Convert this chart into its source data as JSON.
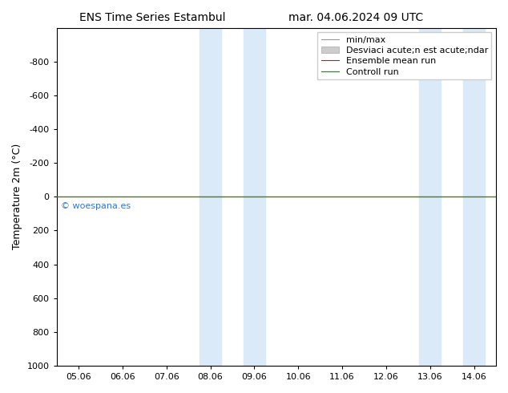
{
  "title_left": "ENS Time Series Estambul",
  "title_right": "mar. 04.06.2024 09 UTC",
  "ylabel": "Temperature 2m (°C)",
  "xlim": [
    -0.5,
    9.5
  ],
  "ylim": [
    1000,
    -1000
  ],
  "yticks": [
    -800,
    -600,
    -400,
    -200,
    0,
    200,
    400,
    600,
    800,
    1000
  ],
  "xtick_labels": [
    "05.06",
    "06.06",
    "07.06",
    "08.06",
    "09.06",
    "10.06",
    "11.06",
    "12.06",
    "13.06",
    "14.06"
  ],
  "xtick_positions": [
    0,
    1,
    2,
    3,
    4,
    5,
    6,
    7,
    8,
    9
  ],
  "shade_regions": [
    [
      2.75,
      3.25
    ],
    [
      3.75,
      4.25
    ],
    [
      7.75,
      8.25
    ],
    [
      8.75,
      9.25
    ]
  ],
  "shade_color": "#daeaf8",
  "horizontal_line_y": 0,
  "control_run_color": "#00aa00",
  "ensemble_mean_color": "#ff0000",
  "minmax_color": "#999999",
  "spread_color": "#cccccc",
  "watermark": "© woespana.es",
  "watermark_color": "#3377cc",
  "background_color": "#ffffff",
  "plot_bg_color": "#ffffff",
  "title_fontsize": 10,
  "axis_fontsize": 9,
  "tick_fontsize": 8,
  "legend_fontsize": 8,
  "legend_label_minmax": "min/max",
  "legend_label_spread": "Desviaci acute;n est acute;ndar",
  "legend_label_ens": "Ensemble mean run",
  "legend_label_ctrl": "Controll run"
}
